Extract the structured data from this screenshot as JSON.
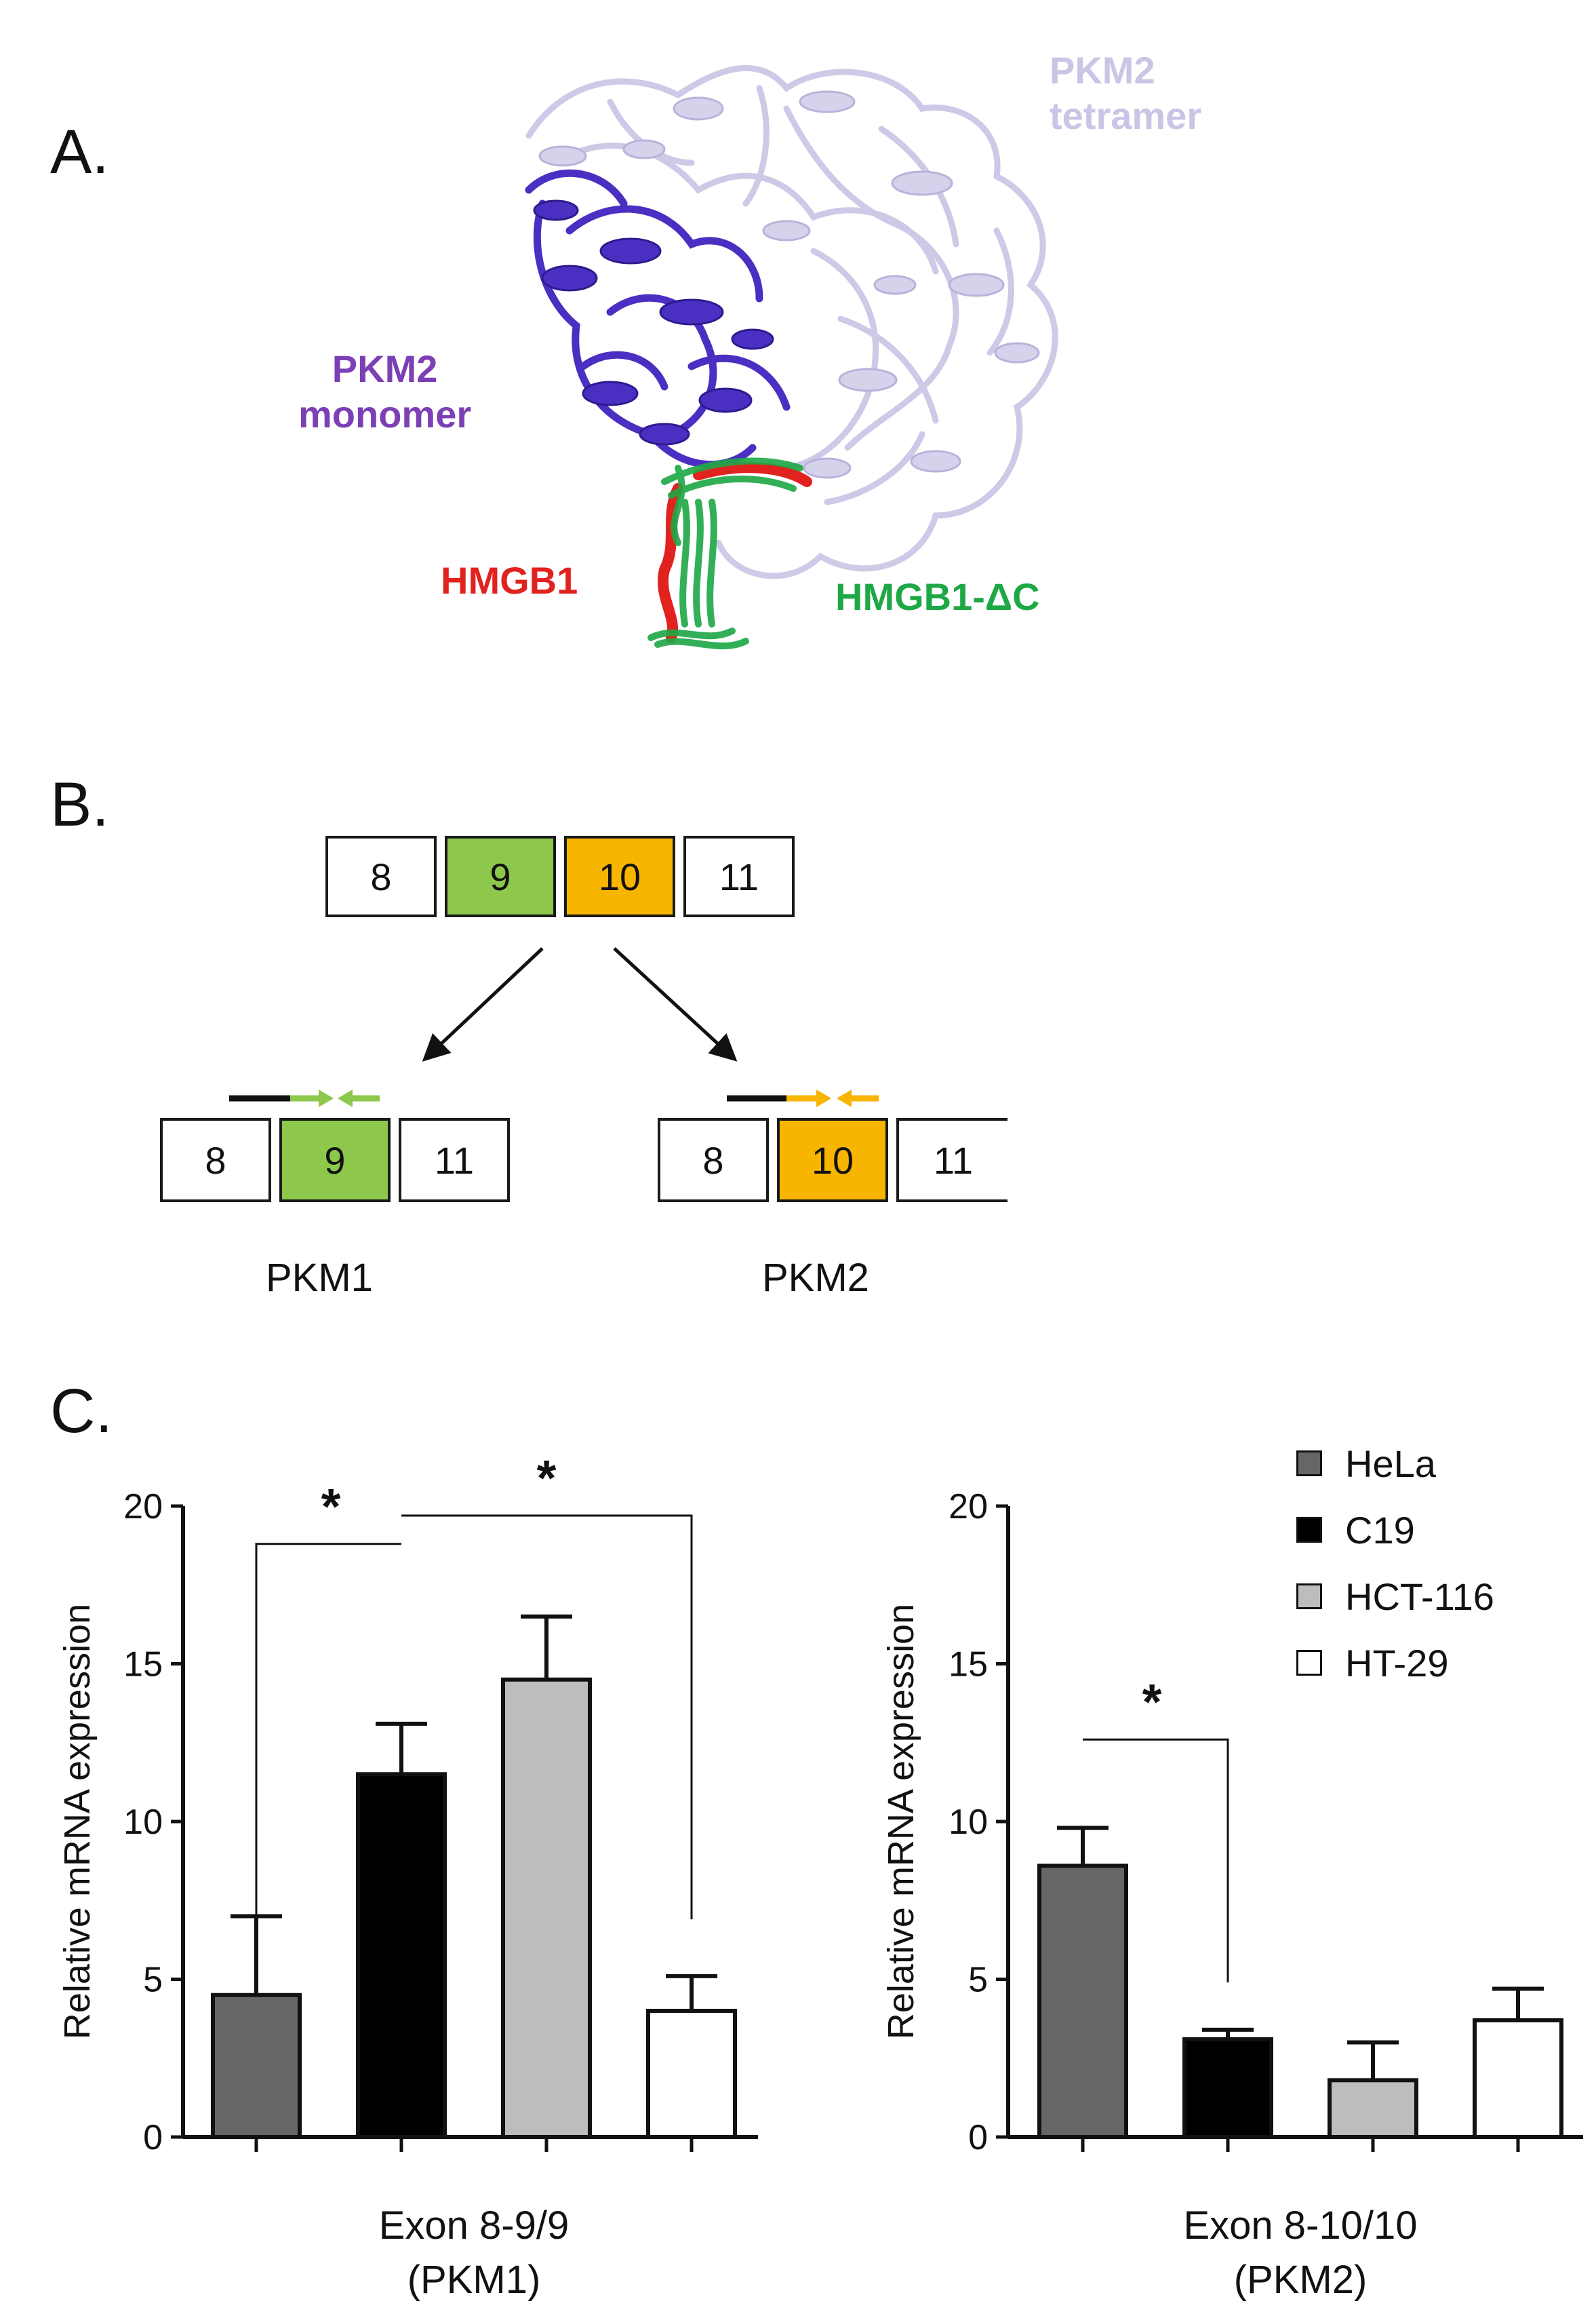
{
  "panelA": {
    "letter": "A.",
    "labels": {
      "tetramer_line1": "PKM2",
      "tetramer_line2": "tetramer",
      "monomer_line1": "PKM2",
      "monomer_line2": "monomer",
      "hmgb1": "HMGB1",
      "hmgb1_dc": "HMGB1-ΔC"
    },
    "colors": {
      "tetramer": "#c9c5e4",
      "monomer": "#4b2fc2",
      "monomer_label": "#7d3fb5",
      "hmgb1": "#e1231f",
      "hmgb1_dc": "#1ea845"
    }
  },
  "panelB": {
    "letter": "B.",
    "gene_exons": [
      "8",
      "9",
      "10",
      "11"
    ],
    "pkm1_exons": [
      "8",
      "9",
      "11"
    ],
    "pkm2_exons": [
      "8",
      "10",
      "11"
    ],
    "pkm1_label": "PKM1",
    "pkm2_label": "PKM2",
    "colors": {
      "exon9": "#8dc84c",
      "exon10": "#f7b500",
      "primer9": "#8dc84c",
      "primer10": "#f7b500"
    }
  },
  "panelC": {
    "letter": "C.",
    "legend": [
      {
        "label": "HeLa",
        "color": "#666666"
      },
      {
        "label": "C19",
        "color": "#000000"
      },
      {
        "label": "HCT-116",
        "color": "#bdbdbd"
      },
      {
        "label": "HT-29",
        "color": "#ffffff"
      }
    ]
  },
  "chart_data": [
    {
      "type": "bar",
      "categories": [
        "HeLa",
        "C19",
        "HCT-116",
        "HT-29"
      ],
      "values": [
        4.5,
        11.5,
        14.5,
        4.0
      ],
      "errors": [
        2.5,
        1.6,
        2.0,
        1.1
      ],
      "xlabel_line1": "Exon 8-9/9",
      "xlabel_line2": "(PKM1)",
      "ylabel": "Relative mRNA expression",
      "ylim": [
        0,
        20
      ],
      "yticks": [
        "0",
        "5",
        "10",
        "15",
        "20"
      ],
      "significance": [
        {
          "from": 0,
          "to": 1,
          "label": "*"
        },
        {
          "from": 1,
          "to": 3,
          "label": "*"
        }
      ]
    },
    {
      "type": "bar",
      "categories": [
        "HeLa",
        "C19",
        "HCT-116",
        "HT-29"
      ],
      "values": [
        8.6,
        3.1,
        1.8,
        3.7
      ],
      "errors": [
        1.2,
        0.3,
        1.2,
        1.0
      ],
      "xlabel_line1": "Exon 8-10/10",
      "xlabel_line2": "(PKM2)",
      "ylabel": "Relative mRNA expression",
      "ylim": [
        0,
        20
      ],
      "yticks": [
        "0",
        "5",
        "10",
        "15",
        "20"
      ],
      "significance": [
        {
          "from": 0,
          "to": 1,
          "label": "*"
        }
      ]
    }
  ]
}
